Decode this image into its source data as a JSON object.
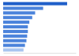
{
  "chart_data": {
    "type": "bar",
    "orientation": "horizontal",
    "categories": [
      null,
      null,
      null,
      null,
      null,
      null,
      null,
      null,
      null,
      null,
      null
    ],
    "values": [
      88,
      55,
      44,
      40,
      36,
      34,
      34,
      33,
      32,
      30,
      28
    ],
    "colors": [
      "#1f5fc9",
      "#4b83db",
      "#4b83db",
      "#4b83db",
      "#4b83db",
      "#4b83db",
      "#4b83db",
      "#4b83db",
      "#4b83db",
      "#4b83db",
      "#a8c5ef"
    ],
    "xlim": [
      0,
      100
    ],
    "xticks": [],
    "grid": false,
    "tick_labels": false
  }
}
